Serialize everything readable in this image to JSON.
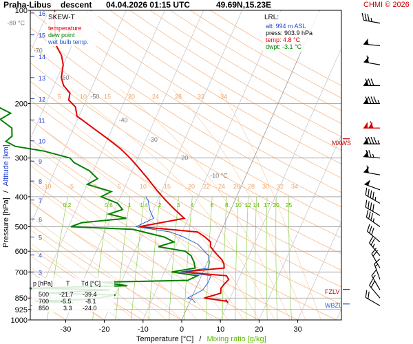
{
  "header": {
    "station": "Praha-Libus",
    "mode": "descent",
    "datetime": "04.04.2026 01:15 UTC",
    "coords": "49.69N,15.23E",
    "credit": "CHMI © 2026"
  },
  "legend": {
    "title": "SKEW-T",
    "temperature": "temperature",
    "dewpoint": "dew point",
    "wetbulb": "wet bulb temp.",
    "colors": {
      "temperature": "#e00000",
      "dewpoint": "#008000",
      "wetbulb": "#1f5fd0"
    }
  },
  "lrl": {
    "title": "LRL:",
    "alt": "alt: 994 m ASL",
    "press": "press: 903.9 hPa",
    "temp": "temp: 4.8 °C",
    "dwpt": "dwpt: -3.1 °C"
  },
  "table": {
    "header": [
      "p [hPa]",
      "T",
      "Td [°C]"
    ],
    "rows": [
      [
        "500",
        "-21.7",
        "-39.4"
      ],
      [
        "700",
        "-5.5",
        "-8.1"
      ],
      [
        "850",
        "3.3",
        "-24.0"
      ]
    ]
  },
  "markers": {
    "mxws": "MXWS",
    "fzlv": "FZLV",
    "wbzl": "WBZL"
  },
  "chart_data": {
    "type": "line",
    "subtype": "skew-t log-p",
    "xlabel": "Temperature [°C]",
    "xlabel_sep": "/",
    "xlabel2": "Mixing ratio [g/kg]",
    "ylabel": "Pressure [hPa]",
    "ylabel_sep": "/",
    "ylabel2": "Altitude [km]",
    "x_ticks": [
      "-30",
      "-20",
      "-10",
      "0",
      "10",
      "20",
      "30"
    ],
    "x_tick_values": [
      -30,
      -20,
      -10,
      0,
      10,
      20,
      30
    ],
    "xlim": [
      -35,
      40
    ],
    "ylim": [
      1000,
      100
    ],
    "y_scale": "log",
    "p_ticks": [
      1000,
      925,
      850,
      700,
      600,
      500,
      400,
      300,
      200,
      100
    ],
    "alt_ticks": [
      "1",
      "2",
      "3",
      "4",
      "5",
      "6",
      "7",
      "8",
      "9",
      "10",
      "11",
      "12",
      "13",
      "14",
      "15",
      "16"
    ],
    "alt_tick_p": [
      900,
      795,
      700,
      617,
      540,
      472,
      410,
      356,
      307,
      264,
      226,
      193,
      165,
      141,
      120,
      102
    ],
    "isotherm_labels": [
      "-80 °C",
      "-70",
      "-60",
      "-50",
      "-40",
      "-30",
      "-20",
      "-10 °C"
    ],
    "isotherm_label_values": [
      -80,
      -70,
      -60,
      -50,
      -40,
      -30,
      -20,
      -10
    ],
    "isotherm_label_p": [
      110,
      135,
      165,
      190,
      226,
      262,
      300,
      342
    ],
    "mixing_ratio_labels": [
      "0.2",
      "0.6",
      "1",
      "1.4",
      "2",
      "3",
      "4",
      "6",
      "8",
      "10",
      "12",
      "14",
      "17",
      "20",
      "25"
    ],
    "mixing_ratio_values": [
      0.2,
      0.6,
      1,
      1.4,
      2,
      3,
      4,
      6,
      8,
      10,
      12,
      14,
      17,
      20,
      25
    ],
    "theta_labels_upper": [
      "5",
      "10",
      "15",
      "20",
      "24",
      "28",
      "32",
      "34"
    ],
    "theta_labels_upper_p": 195,
    "theta_labels_lower": [
      "-10",
      "-5",
      "0",
      "5",
      "10",
      "15",
      "20",
      "22",
      "24",
      "26",
      "28",
      "30",
      "32",
      "34"
    ],
    "theta_labels_lower_p": 380,
    "series": [
      {
        "name": "temperature",
        "color": "#e00000",
        "points": [
          [
            860,
            9.0
          ],
          [
            880,
            10.0
          ],
          [
            870,
            9.5
          ],
          [
            850,
            3.3
          ],
          [
            820,
            7.0
          ],
          [
            790,
            6.5
          ],
          [
            760,
            7.0
          ],
          [
            740,
            7.5
          ],
          [
            720,
            6.5
          ],
          [
            700,
            -5.5
          ],
          [
            680,
            5.0
          ],
          [
            660,
            4.5
          ],
          [
            640,
            3.5
          ],
          [
            620,
            2.0
          ],
          [
            600,
            0.5
          ],
          [
            580,
            -1.0
          ],
          [
            560,
            -1.5
          ],
          [
            540,
            -3.5
          ],
          [
            520,
            -6.0
          ],
          [
            500,
            -21.7
          ],
          [
            470,
            -11.0
          ],
          [
            440,
            -14.5
          ],
          [
            410,
            -18.0
          ],
          [
            380,
            -21.5
          ],
          [
            350,
            -25.0
          ],
          [
            320,
            -29.0
          ],
          [
            300,
            -32.0
          ],
          [
            280,
            -35.5
          ],
          [
            260,
            -40.0
          ],
          [
            240,
            -45.0
          ],
          [
            225,
            -49.0
          ],
          [
            220,
            -50.5
          ],
          [
            205,
            -52.0
          ],
          [
            195,
            -54.5
          ],
          [
            185,
            -55.0
          ],
          [
            175,
            -57.5
          ],
          [
            165,
            -59.0
          ],
          [
            150,
            -60.0
          ],
          [
            140,
            -61.5
          ],
          [
            130,
            -64.0
          ],
          [
            120,
            -65.5
          ],
          [
            110,
            -67.0
          ],
          [
            100,
            -68.5
          ]
        ]
      },
      {
        "name": "dew point",
        "color": "#008000",
        "points": [
          [
            880,
            -30.0
          ],
          [
            870,
            -40.0
          ],
          [
            860,
            -28.0
          ],
          [
            850,
            -24.0
          ],
          [
            830,
            -20.0
          ],
          [
            820,
            -38.0
          ],
          [
            800,
            -22.0
          ],
          [
            790,
            -43.0
          ],
          [
            775,
            -18.0
          ],
          [
            755,
            -25.0
          ],
          [
            745,
            -3.0
          ],
          [
            720,
            -1.0
          ],
          [
            700,
            -8.1
          ],
          [
            680,
            -2.5
          ],
          [
            650,
            -3.5
          ],
          [
            620,
            -5.0
          ],
          [
            600,
            -7.0
          ],
          [
            580,
            -14.5
          ],
          [
            560,
            -11.0
          ],
          [
            540,
            -14.0
          ],
          [
            510,
            -23.0
          ],
          [
            500,
            -39.4
          ],
          [
            485,
            -37.0
          ],
          [
            470,
            -26.0
          ],
          [
            455,
            -31.0
          ],
          [
            440,
            -28.0
          ],
          [
            420,
            -30.0
          ],
          [
            400,
            -35.0
          ],
          [
            385,
            -33.0
          ],
          [
            365,
            -40.0
          ],
          [
            350,
            -38.0
          ],
          [
            330,
            -41.0
          ],
          [
            310,
            -46.0
          ],
          [
            300,
            -47.5
          ],
          [
            285,
            -55.0
          ],
          [
            275,
            -63.0
          ],
          [
            265,
            -66.0
          ],
          [
            255,
            -65.0
          ],
          [
            240,
            -66.0
          ],
          [
            225,
            -70.0
          ],
          [
            215,
            -68.0
          ],
          [
            205,
            -72.0
          ],
          [
            190,
            -74.0
          ],
          [
            180,
            -74.0
          ],
          [
            165,
            -77.0
          ],
          [
            150,
            -80.0
          ],
          [
            135,
            -80.0
          ],
          [
            120,
            -82.0
          ],
          [
            110,
            -84.0
          ],
          [
            100,
            -86.0
          ]
        ]
      },
      {
        "name": "wet bulb temp.",
        "color": "#1f5fd0",
        "points": [
          [
            880,
            1.5
          ],
          [
            860,
            0.5
          ],
          [
            850,
            -1.0
          ],
          [
            800,
            2.0
          ],
          [
            760,
            2.5
          ],
          [
            720,
            2.5
          ],
          [
            700,
            -6.0
          ],
          [
            680,
            1.0
          ],
          [
            650,
            0.5
          ],
          [
            620,
            -0.5
          ],
          [
            600,
            -2.0
          ],
          [
            570,
            -4.5
          ],
          [
            540,
            -9.0
          ],
          [
            520,
            -13.0
          ],
          [
            500,
            -22.5
          ],
          [
            470,
            -19.0
          ],
          [
            440,
            -21.0
          ],
          [
            410,
            -22.5
          ],
          [
            400,
            -23.5
          ]
        ]
      }
    ],
    "wind": [
      {
        "p": 110,
        "dir": 280,
        "kt": 35
      },
      {
        "p": 130,
        "dir": 275,
        "kt": 55
      },
      {
        "p": 150,
        "dir": 280,
        "kt": 60
      },
      {
        "p": 175,
        "dir": 270,
        "kt": 80
      },
      {
        "p": 200,
        "dir": 270,
        "kt": 95
      },
      {
        "p": 240,
        "dir": 270,
        "kt": 110
      },
      {
        "p": 270,
        "dir": 270,
        "kt": 95
      },
      {
        "p": 300,
        "dir": 275,
        "kt": 75
      },
      {
        "p": 340,
        "dir": 280,
        "kt": 60
      },
      {
        "p": 380,
        "dir": 290,
        "kt": 50
      },
      {
        "p": 420,
        "dir": 300,
        "kt": 45
      },
      {
        "p": 460,
        "dir": 300,
        "kt": 40
      },
      {
        "p": 500,
        "dir": 305,
        "kt": 35
      },
      {
        "p": 560,
        "dir": 310,
        "kt": 30
      },
      {
        "p": 620,
        "dir": 320,
        "kt": 25
      },
      {
        "p": 680,
        "dir": 330,
        "kt": 20
      },
      {
        "p": 740,
        "dir": 340,
        "kt": 15
      },
      {
        "p": 800,
        "dir": 330,
        "kt": 15
      },
      {
        "p": 850,
        "dir": 320,
        "kt": 20
      },
      {
        "p": 900,
        "dir": 300,
        "kt": 20
      }
    ],
    "wind_highlight_p": 240,
    "mxws_p": 260,
    "fzlv_p": 797,
    "wbzl_p": 888,
    "grid": true
  }
}
